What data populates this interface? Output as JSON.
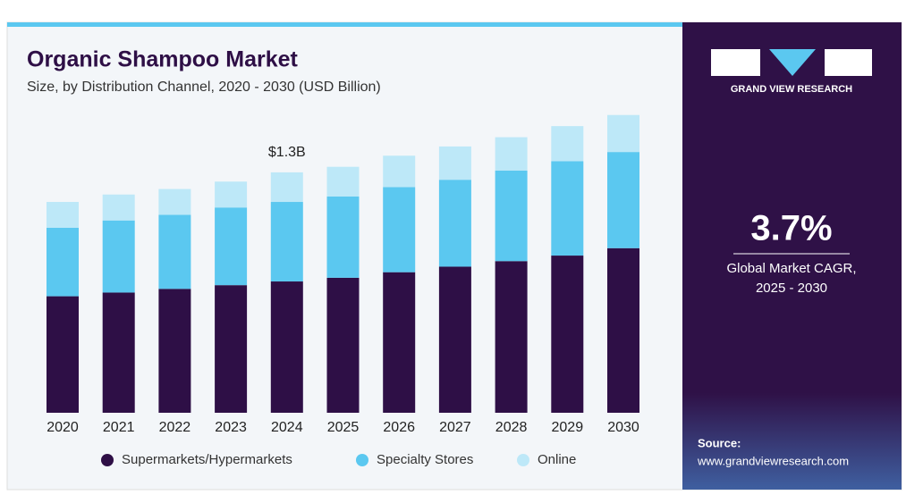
{
  "chart_data": {
    "type": "stacked-bar",
    "title": "Organic Shampoo Market",
    "subtitle": "Size, by Distribution Channel, 2020 - 2030 (USD Billion)",
    "categories": [
      "2020",
      "2021",
      "2022",
      "2023",
      "2024",
      "2025",
      "2026",
      "2027",
      "2028",
      "2029",
      "2030"
    ],
    "series": [
      {
        "name": "Supermarkets/Hypermarkets",
        "color": "#2e0f46",
        "values": [
          0.63,
          0.65,
          0.67,
          0.69,
          0.71,
          0.73,
          0.76,
          0.79,
          0.82,
          0.85,
          0.89
        ]
      },
      {
        "name": "Specialty Stores",
        "color": "#5bc8f0",
        "values": [
          0.37,
          0.39,
          0.4,
          0.42,
          0.43,
          0.44,
          0.46,
          0.47,
          0.49,
          0.51,
          0.52
        ]
      },
      {
        "name": "Online",
        "color": "#bde8f8",
        "values": [
          0.14,
          0.14,
          0.14,
          0.14,
          0.16,
          0.16,
          0.17,
          0.18,
          0.18,
          0.19,
          0.2
        ]
      }
    ],
    "annotations": [
      {
        "x": "2024",
        "text": "$1.3B"
      }
    ]
  },
  "sidebar": {
    "brand": "GRAND VIEW RESEARCH",
    "stat": "3.7%",
    "stat_caption_1": "Global Market CAGR,",
    "stat_caption_2": "2025 - 2030",
    "source_label": "Source:",
    "source_url": "www.grandviewresearch.com"
  }
}
